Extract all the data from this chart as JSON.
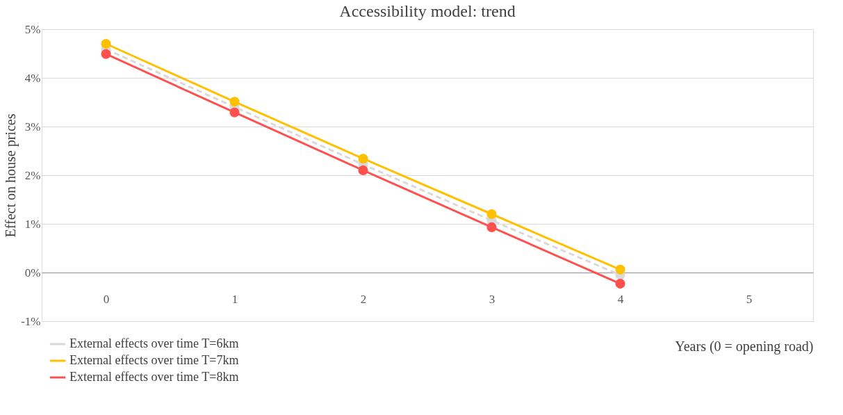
{
  "chart_data": {
    "type": "line",
    "title": "Accessibility model: trend",
    "xlabel": "Years (0 = opening road)",
    "ylabel": "Effect on house prices",
    "categories": [
      "0",
      "1",
      "2",
      "3",
      "4",
      "5"
    ],
    "series": [
      {
        "name": "External effects over time T=6km",
        "color": "#d9d9d9",
        "line_style": "dashed",
        "values": [
          4.59,
          3.4,
          2.22,
          1.07,
          -0.05,
          null
        ]
      },
      {
        "name": "External effects over time T=7km",
        "color": "#ffc000",
        "line_style": "solid",
        "values": [
          4.7,
          3.51,
          2.34,
          1.2,
          0.06,
          null
        ]
      },
      {
        "name": "External effects over time T=8km",
        "color": "#ff5050",
        "line_style": "solid",
        "values": [
          4.49,
          3.29,
          2.1,
          0.93,
          -0.23,
          null
        ]
      }
    ],
    "ylim": [
      -1,
      5
    ],
    "yticks": [
      {
        "value": -1,
        "label": "-1%"
      },
      {
        "value": 0,
        "label": "0%"
      },
      {
        "value": 1,
        "label": "1%"
      },
      {
        "value": 2,
        "label": "2%"
      },
      {
        "value": 3,
        "label": "3%"
      },
      {
        "value": 4,
        "label": "4%"
      },
      {
        "value": 5,
        "label": "5%"
      }
    ],
    "grid": "y",
    "legend": "bottom left",
    "marker": "circle"
  }
}
